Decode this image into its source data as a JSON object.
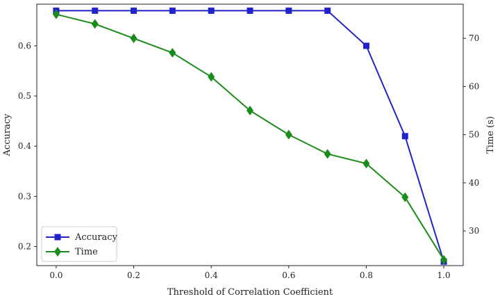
{
  "chart_data": {
    "type": "line",
    "title": "",
    "xlabel": "Threshold of Correlation Coefficient",
    "x": [
      0.0,
      0.1,
      0.2,
      0.3,
      0.4,
      0.5,
      0.6,
      0.7,
      0.8,
      0.9,
      1.0
    ],
    "xlim": [
      -0.05,
      1.05
    ],
    "xticks": [
      0.0,
      0.2,
      0.4,
      0.6,
      0.8,
      1.0
    ],
    "xtick_labels": [
      "0.0",
      "0.2",
      "0.4",
      "0.6",
      "0.8",
      "1.0"
    ],
    "y_left": {
      "label": "Accuracy",
      "lim": [
        0.162,
        0.683
      ],
      "ticks": [
        0.2,
        0.3,
        0.4,
        0.5,
        0.6
      ],
      "tick_labels": [
        "0.2",
        "0.3",
        "0.4",
        "0.5",
        "0.6"
      ]
    },
    "y_right": {
      "label": "Time (s)",
      "lim": [
        22.8,
        77.1
      ],
      "ticks": [
        30,
        40,
        50,
        60,
        70
      ],
      "tick_labels": [
        "30",
        "40",
        "50",
        "60",
        "70"
      ]
    },
    "series": [
      {
        "name": "Accuracy",
        "axis": "left",
        "color": "#2222cc",
        "marker": "square",
        "values": [
          0.67,
          0.67,
          0.67,
          0.67,
          0.67,
          0.67,
          0.67,
          0.67,
          0.6,
          0.42,
          0.17
        ]
      },
      {
        "name": "Time",
        "axis": "right",
        "color": "#1a8c1a",
        "marker": "diamond",
        "values": [
          75,
          73,
          70,
          67,
          62,
          55,
          50,
          46,
          44,
          37,
          24
        ]
      }
    ],
    "legend": {
      "placement": "lower-left",
      "entries": [
        "Accuracy",
        "Time"
      ]
    },
    "grid": false
  }
}
